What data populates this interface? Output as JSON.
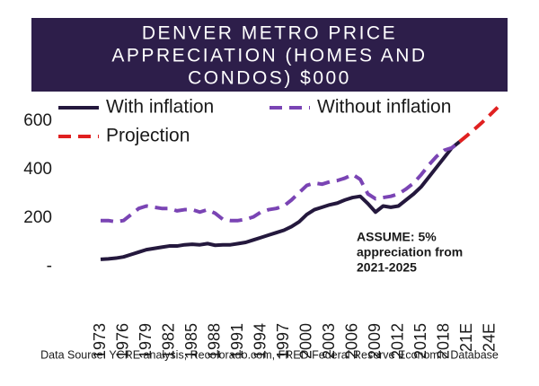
{
  "chart_data": {
    "type": "line",
    "title": [
      "DENVER METRO PRICE",
      "APPRECIATION (HOMES AND",
      "CONDOS) $000"
    ],
    "categories": [
      "1973",
      null,
      null,
      "1976",
      null,
      null,
      "1979",
      null,
      null,
      "1982",
      null,
      null,
      "1985",
      null,
      null,
      "1988",
      null,
      null,
      "1991",
      null,
      null,
      "1994",
      null,
      null,
      "1997",
      null,
      null,
      "2000",
      null,
      null,
      "2003",
      null,
      null,
      "2006",
      null,
      null,
      "2009",
      null,
      null,
      "2012",
      null,
      null,
      "2015",
      null,
      null,
      "2018",
      null,
      null,
      "21E",
      null,
      null,
      "24E",
      null
    ],
    "series": [
      {
        "name": "With inflation",
        "color": "#24183d",
        "dash": false,
        "values": [
          30,
          32,
          35,
          40,
          50,
          60,
          70,
          75,
          80,
          85,
          85,
          90,
          92,
          90,
          95,
          88,
          90,
          90,
          95,
          100,
          110,
          120,
          130,
          140,
          150,
          165,
          185,
          215,
          235,
          245,
          255,
          262,
          275,
          285,
          290,
          260,
          225,
          250,
          245,
          250,
          275,
          300,
          330,
          370,
          410,
          450,
          490,
          515,
          null,
          null,
          null,
          null,
          null
        ]
      },
      {
        "name": "Without inflation",
        "color": "#7a44b4",
        "dash": true,
        "values": [
          190,
          190,
          185,
          190,
          215,
          240,
          250,
          245,
          240,
          240,
          230,
          235,
          235,
          225,
          235,
          220,
          195,
          190,
          190,
          195,
          205,
          225,
          235,
          240,
          250,
          275,
          305,
          335,
          345,
          340,
          350,
          355,
          365,
          380,
          360,
          300,
          280,
          285,
          290,
          300,
          320,
          345,
          380,
          420,
          455,
          480,
          490,
          515,
          null,
          null,
          null,
          null,
          null
        ]
      },
      {
        "name": "Projection",
        "color": "#e02020",
        "dash": true,
        "values": [
          null,
          null,
          null,
          null,
          null,
          null,
          null,
          null,
          null,
          null,
          null,
          null,
          null,
          null,
          null,
          null,
          null,
          null,
          null,
          null,
          null,
          null,
          null,
          null,
          null,
          null,
          null,
          null,
          null,
          null,
          null,
          null,
          null,
          null,
          null,
          null,
          null,
          null,
          null,
          null,
          null,
          null,
          null,
          null,
          null,
          null,
          null,
          515,
          541,
          568,
          596,
          626,
          657
        ]
      }
    ],
    "ylim": [
      0,
      700
    ],
    "yticks": [
      {
        "value": 0,
        "label": "-"
      },
      200,
      400,
      600
    ],
    "annotation": [
      "ASSUME: 5%",
      "appreciation from",
      "2021-2025"
    ],
    "source": "Data Source: YCRE analysis, Recolorado.com, FRED Federal Reserve Economic Database"
  }
}
